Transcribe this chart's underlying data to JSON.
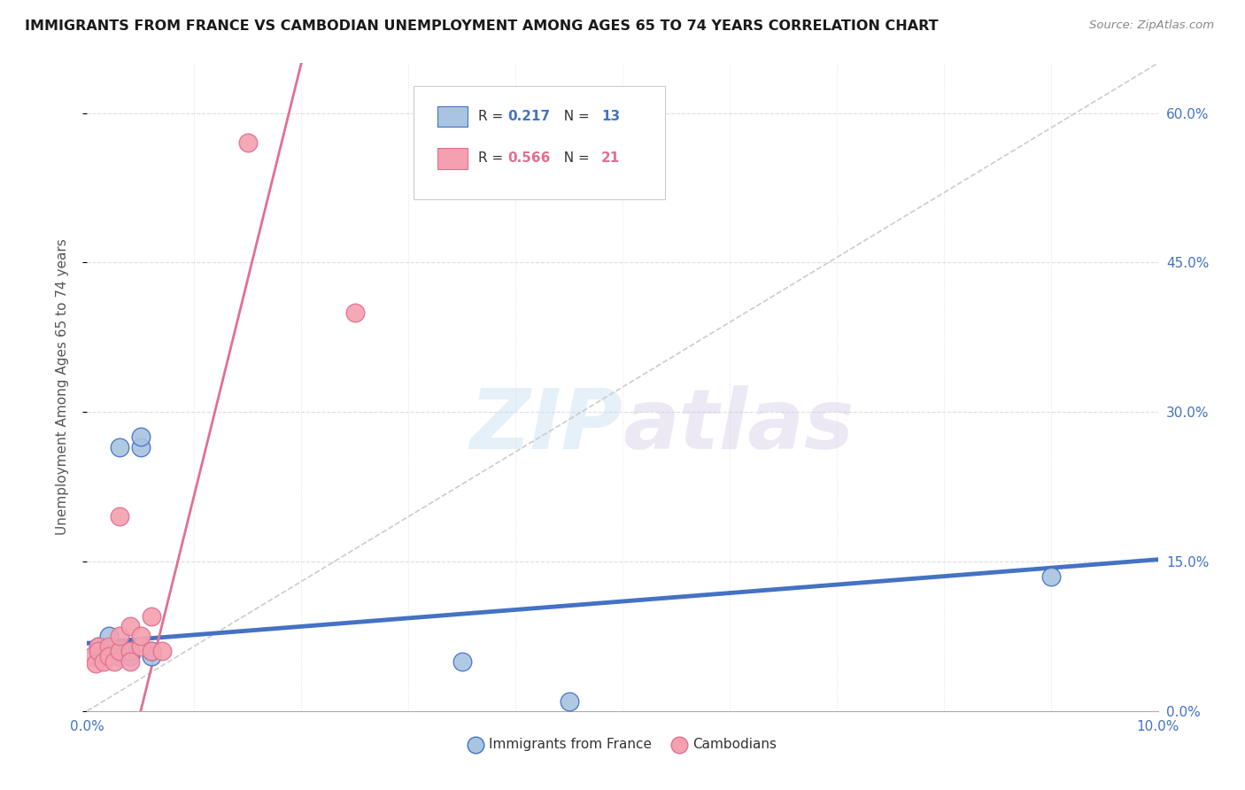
{
  "title": "IMMIGRANTS FROM FRANCE VS CAMBODIAN UNEMPLOYMENT AMONG AGES 65 TO 74 YEARS CORRELATION CHART",
  "source": "Source: ZipAtlas.com",
  "ylabel": "Unemployment Among Ages 65 to 74 years",
  "xlim": [
    0.0,
    0.1
  ],
  "ylim": [
    0.0,
    0.65
  ],
  "xticks_show": [
    0.0,
    0.1
  ],
  "xtick_labels_show": [
    "0.0%",
    "10.0%"
  ],
  "xticks_grid": [
    0.01,
    0.02,
    0.03,
    0.04,
    0.05,
    0.06,
    0.07,
    0.08,
    0.09
  ],
  "yticks_right": [
    0.0,
    0.15,
    0.3,
    0.45,
    0.6
  ],
  "ytick_labels_right": [
    "0.0%",
    "15.0%",
    "30.0%",
    "45.0%",
    "60.0%"
  ],
  "legend_entries": [
    {
      "label": "Immigrants from France",
      "R": "0.217",
      "N": "13",
      "color": "#a8c4e0",
      "edge": "#4472c4"
    },
    {
      "label": "Cambodians",
      "R": "0.566",
      "N": "21",
      "color": "#f4a0b0",
      "edge": "#e07090"
    }
  ],
  "blue_points": [
    [
      0.001,
      0.065
    ],
    [
      0.002,
      0.075
    ],
    [
      0.003,
      0.055
    ],
    [
      0.003,
      0.265
    ],
    [
      0.004,
      0.055
    ],
    [
      0.004,
      0.06
    ],
    [
      0.005,
      0.265
    ],
    [
      0.005,
      0.275
    ],
    [
      0.006,
      0.055
    ],
    [
      0.006,
      0.06
    ],
    [
      0.035,
      0.05
    ],
    [
      0.045,
      0.01
    ],
    [
      0.09,
      0.135
    ]
  ],
  "pink_points": [
    [
      0.0005,
      0.055
    ],
    [
      0.0008,
      0.048
    ],
    [
      0.001,
      0.065
    ],
    [
      0.001,
      0.06
    ],
    [
      0.0015,
      0.05
    ],
    [
      0.002,
      0.065
    ],
    [
      0.002,
      0.055
    ],
    [
      0.0025,
      0.05
    ],
    [
      0.003,
      0.06
    ],
    [
      0.003,
      0.195
    ],
    [
      0.003,
      0.075
    ],
    [
      0.004,
      0.06
    ],
    [
      0.004,
      0.085
    ],
    [
      0.004,
      0.05
    ],
    [
      0.005,
      0.065
    ],
    [
      0.005,
      0.075
    ],
    [
      0.006,
      0.06
    ],
    [
      0.015,
      0.57
    ],
    [
      0.025,
      0.4
    ],
    [
      0.006,
      0.095
    ],
    [
      0.007,
      0.06
    ]
  ],
  "blue_line": {
    "x0": 0.0,
    "y0": 0.068,
    "x1": 0.1,
    "y1": 0.152
  },
  "pink_line": {
    "x0": 0.005,
    "y0": 0.0,
    "x1": 0.02,
    "y1": 0.65
  },
  "ref_line": {
    "x0": 0.0,
    "y0": 0.0,
    "x1": 0.1,
    "y1": 0.65
  },
  "watermark_zip": "ZIP",
  "watermark_atlas": "atlas",
  "title_color": "#1a1a1a",
  "source_color": "#888888",
  "blue_dot_color": "#a8c4e0",
  "pink_dot_color": "#f4a0b0",
  "blue_line_color": "#4472c4",
  "pink_line_color": "#e07090",
  "ref_line_color": "#cccccc",
  "axis_color": "#4472c4",
  "grid_color": "#dddddd",
  "grid_linestyle": "--"
}
